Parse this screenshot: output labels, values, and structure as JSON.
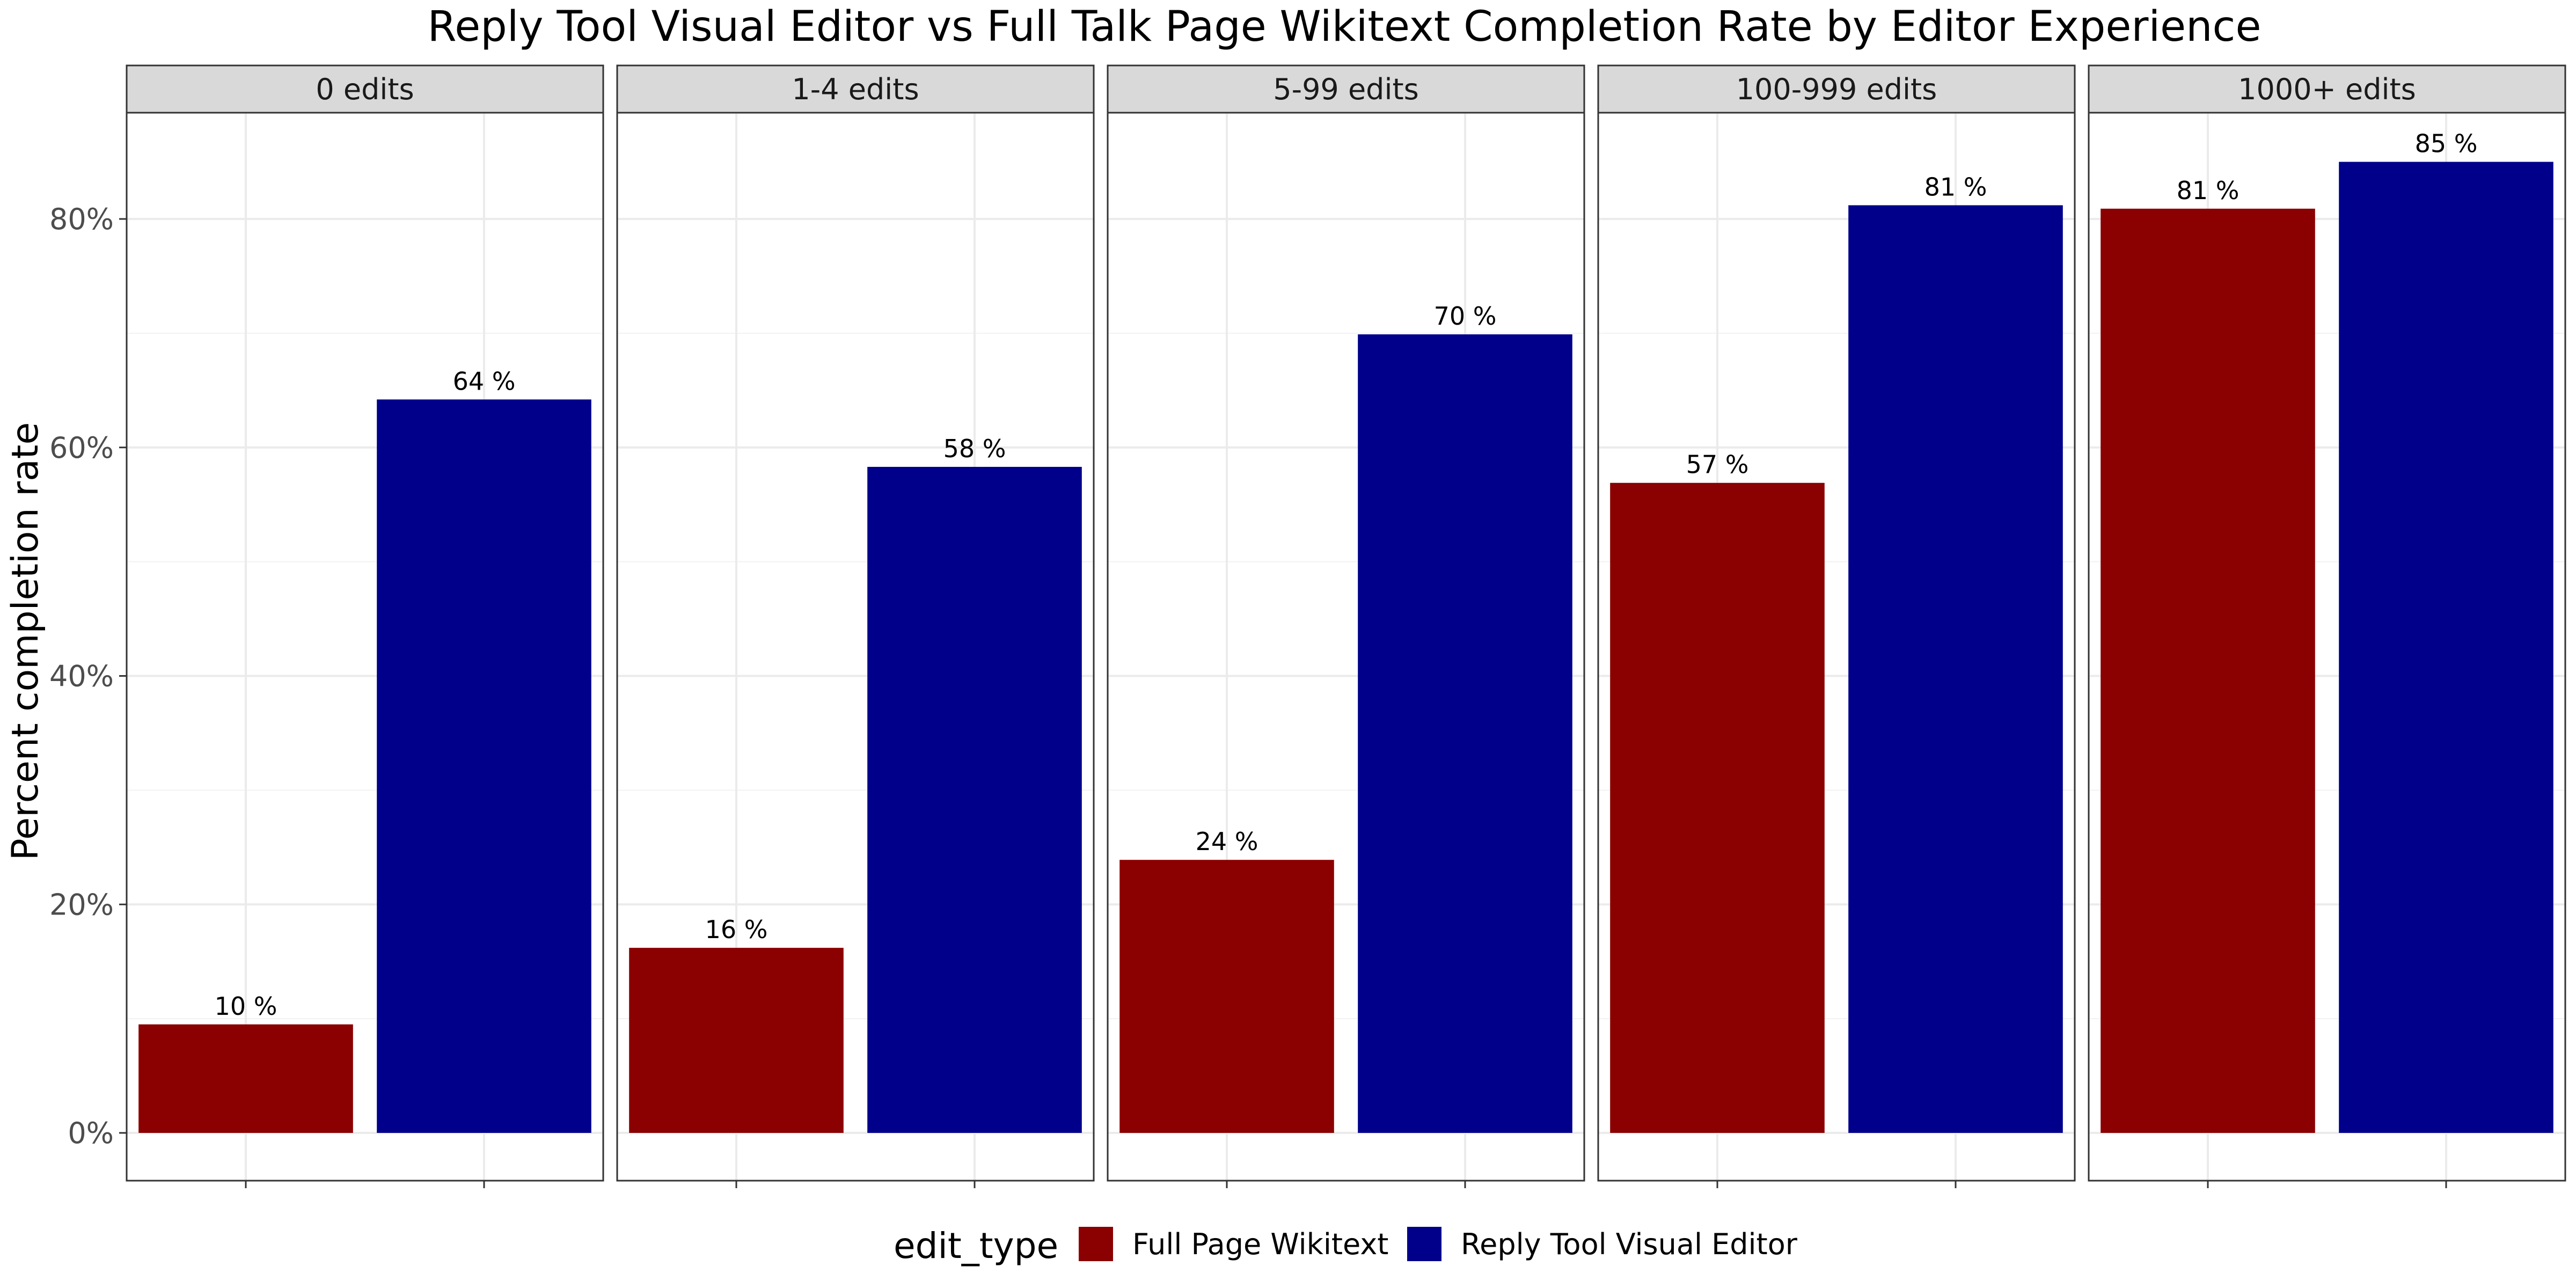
{
  "chart_data": {
    "type": "bar",
    "title": "Reply Tool Visual Editor vs Full Talk Page Wikitext Completion Rate by Editor Experience",
    "xlabel": "",
    "ylabel": "Percent completion rate",
    "ylim": [
      0,
      0.9
    ],
    "yticks": [
      0,
      0.2,
      0.4,
      0.6,
      0.8
    ],
    "ytick_labels": [
      "0%",
      "20%",
      "40%",
      "60%",
      "80%"
    ],
    "grid": true,
    "facets": [
      "0 edits",
      "1-4 edits",
      "5-99 edits",
      "100-999 edits",
      "1000+ edits"
    ],
    "legend": {
      "title": "edit_type",
      "position": "bottom"
    },
    "series": [
      {
        "name": "Full Page Wikitext",
        "color": "#8B0000",
        "values": [
          0.095,
          0.162,
          0.239,
          0.569,
          0.809
        ],
        "labels": [
          "10 %",
          "16 %",
          "24 %",
          "57 %",
          "81 %"
        ]
      },
      {
        "name": "Reply Tool Visual Editor",
        "color": "#00008B",
        "values": [
          0.642,
          0.583,
          0.699,
          0.812,
          0.85
        ],
        "labels": [
          "64 %",
          "58 %",
          "70 %",
          "81 %",
          "85 %"
        ]
      }
    ]
  }
}
